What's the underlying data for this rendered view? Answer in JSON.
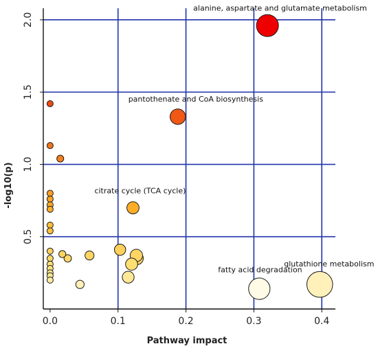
{
  "chart_data": {
    "type": "scatter",
    "title": "",
    "xlabel": "Pathway impact",
    "ylabel": "-log10(p)",
    "xlim": [
      -0.01,
      0.42
    ],
    "ylim": [
      0.0,
      2.08
    ],
    "x_ticks": [
      0.0,
      0.1,
      0.2,
      0.3,
      0.4
    ],
    "x_tick_labels": [
      "0.0",
      "0.1",
      "0.2",
      "0.3",
      "0.4"
    ],
    "y_ticks": [
      0.5,
      1.0,
      1.5,
      2.0
    ],
    "y_tick_labels": [
      "0.5",
      "1.0",
      "1.5",
      "2.0"
    ],
    "grid": true,
    "grid_color": "#2233aa",
    "legend": "none",
    "size_encodes": "Pathway impact",
    "color_encodes": "-log10(p)",
    "color_scale": [
      "#fffbe6",
      "#ffe27a",
      "#ffb42a",
      "#f06a18",
      "#ee0000"
    ],
    "points": [
      {
        "x": 0.32,
        "y": 1.96,
        "label": "alanine, aspartate and glutamate metabolism"
      },
      {
        "x": 0.188,
        "y": 1.33,
        "label": "pantothenate and CoA biosynthesis"
      },
      {
        "x": 0.0,
        "y": 1.42
      },
      {
        "x": 0.0,
        "y": 1.13
      },
      {
        "x": 0.015,
        "y": 1.04
      },
      {
        "x": 0.0,
        "y": 0.8
      },
      {
        "x": 0.0,
        "y": 0.76
      },
      {
        "x": 0.0,
        "y": 0.72
      },
      {
        "x": 0.0,
        "y": 0.69
      },
      {
        "x": 0.122,
        "y": 0.7,
        "label": "citrate cycle (TCA cycle)"
      },
      {
        "x": 0.0,
        "y": 0.58
      },
      {
        "x": 0.0,
        "y": 0.54
      },
      {
        "x": 0.103,
        "y": 0.41
      },
      {
        "x": 0.0,
        "y": 0.4
      },
      {
        "x": 0.018,
        "y": 0.38
      },
      {
        "x": 0.058,
        "y": 0.37
      },
      {
        "x": 0.127,
        "y": 0.37
      },
      {
        "x": 0.0,
        "y": 0.35
      },
      {
        "x": 0.026,
        "y": 0.35
      },
      {
        "x": 0.128,
        "y": 0.35
      },
      {
        "x": 0.0,
        "y": 0.31
      },
      {
        "x": 0.12,
        "y": 0.31
      },
      {
        "x": 0.0,
        "y": 0.28
      },
      {
        "x": 0.0,
        "y": 0.25
      },
      {
        "x": 0.0,
        "y": 0.23
      },
      {
        "x": 0.115,
        "y": 0.22
      },
      {
        "x": 0.0,
        "y": 0.2
      },
      {
        "x": 0.044,
        "y": 0.17
      },
      {
        "x": 0.397,
        "y": 0.17,
        "label": "glutathione metabolism"
      },
      {
        "x": 0.308,
        "y": 0.14,
        "label": "fatty acid degradation"
      }
    ]
  }
}
